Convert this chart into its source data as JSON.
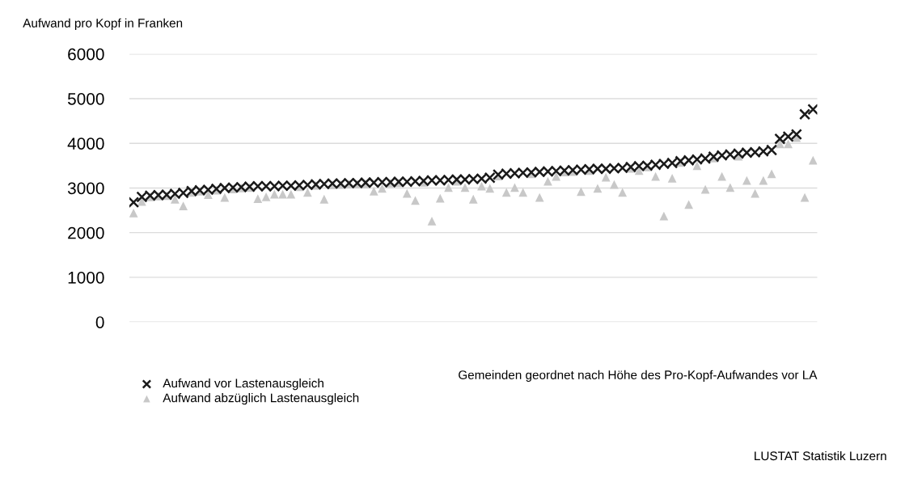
{
  "chart_data": {
    "type": "scatter",
    "ylabel": "Aufwand pro Kopf in Franken",
    "xlabel": "Gemeinden geordnet nach Höhe des Pro-Kopf-Aufwandes vor LA",
    "annotations": [
      "LUSTAT Statistik Luzern"
    ],
    "categories": [
      null,
      null,
      null,
      null,
      null,
      null,
      null,
      null,
      null,
      null,
      null,
      null,
      null,
      null,
      null,
      null,
      null,
      null,
      null,
      null,
      null,
      null,
      null,
      null,
      null,
      null,
      null,
      null,
      null,
      null,
      null,
      null,
      null,
      null,
      null,
      null,
      null,
      null,
      null,
      null,
      null,
      null,
      null,
      null,
      null,
      null,
      null,
      null,
      null,
      null,
      null,
      null,
      null,
      null,
      null,
      null,
      null,
      null,
      null,
      null,
      null,
      null,
      null,
      null,
      null,
      null,
      null,
      null,
      null,
      null,
      null,
      null,
      null,
      null,
      null,
      null,
      null,
      null,
      null,
      null,
      null,
      null,
      null
    ],
    "ylim": [
      0,
      6000
    ],
    "yticks": [
      0,
      1000,
      2000,
      3000,
      4000,
      5000,
      6000
    ],
    "grid": "y",
    "legend": "bottom left",
    "tick_labels": "y",
    "series": [
      {
        "name": "Aufwand vor Lastenausgleich",
        "color": "#1a1a1a",
        "marker": "cross",
        "values": [
          2680,
          2800,
          2830,
          2840,
          2850,
          2870,
          2890,
          2930,
          2950,
          2960,
          2980,
          3000,
          3010,
          3020,
          3030,
          3040,
          3040,
          3040,
          3050,
          3050,
          3060,
          3070,
          3080,
          3090,
          3100,
          3100,
          3110,
          3110,
          3120,
          3120,
          3130,
          3130,
          3140,
          3140,
          3150,
          3160,
          3170,
          3170,
          3180,
          3190,
          3190,
          3200,
          3210,
          3230,
          3300,
          3320,
          3330,
          3340,
          3350,
          3360,
          3370,
          3380,
          3390,
          3400,
          3410,
          3420,
          3430,
          3430,
          3440,
          3450,
          3470,
          3490,
          3500,
          3520,
          3540,
          3560,
          3600,
          3620,
          3640,
          3660,
          3700,
          3730,
          3750,
          3770,
          3790,
          3800,
          3820,
          3850,
          4100,
          4150,
          4200,
          4650,
          4760
        ]
      },
      {
        "name": "Aufwand abzüglich Lastenausgleich",
        "color": "#c8c8c8",
        "marker": "triangle",
        "values": [
          2440,
          2700,
          2800,
          2820,
          2830,
          2750,
          2600,
          2900,
          2930,
          2850,
          2950,
          2790,
          2980,
          3000,
          3010,
          2760,
          2800,
          2860,
          2860,
          2860,
          3030,
          2900,
          3060,
          2750,
          3070,
          3080,
          3090,
          3090,
          3090,
          2930,
          2990,
          3110,
          3120,
          2880,
          2720,
          3130,
          2260,
          2770,
          3010,
          3150,
          3010,
          2750,
          3040,
          2990,
          3270,
          2900,
          3010,
          2900,
          3320,
          2790,
          3150,
          3260,
          3360,
          3370,
          2920,
          3390,
          2990,
          3240,
          3080,
          2900,
          3440,
          3390,
          3470,
          3260,
          2370,
          3220,
          3570,
          2630,
          3500,
          2970,
          3670,
          3260,
          3010,
          3710,
          3170,
          2880,
          3170,
          3320,
          3990,
          3990,
          4130,
          2790,
          3620
        ]
      }
    ]
  }
}
